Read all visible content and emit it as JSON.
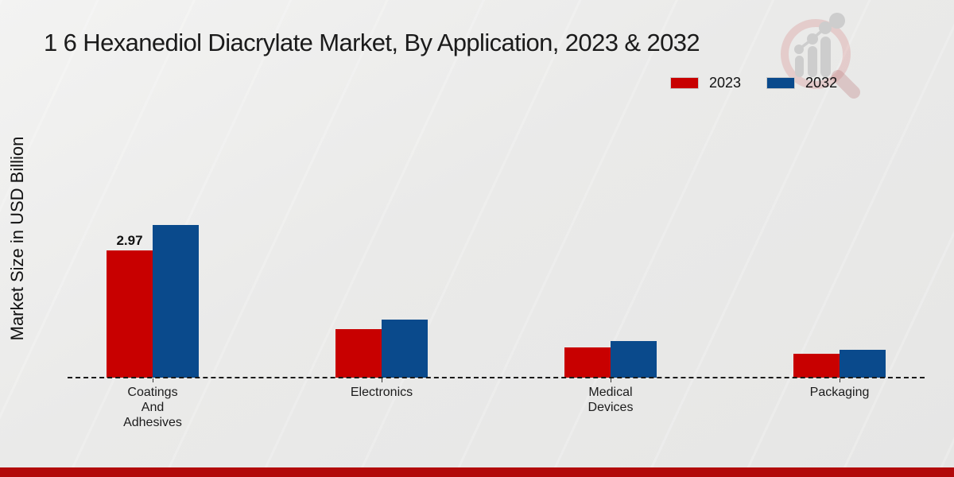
{
  "title": "1 6 Hexanediol Diacrylate Market, By Application, 2023 & 2032",
  "y_axis_label": "Market Size in USD Billion",
  "legend": [
    {
      "label": "2023",
      "color": "#c80000"
    },
    {
      "label": "2032",
      "color": "#0a4a8c"
    }
  ],
  "logo": {
    "name": "magnifier-bar-chart-watermark"
  },
  "colors": {
    "series_2023": "#c80000",
    "series_2032": "#0a4a8c",
    "footer_bar": "#b20a0a",
    "baseline": "#1a1a1a"
  },
  "chart_data": {
    "type": "bar",
    "title": "1 6 Hexanediol Diacrylate Market, By Application, 2023 & 2032",
    "xlabel": "",
    "ylabel": "Market Size in USD Billion",
    "categories": [
      "Coatings\nAnd\nAdhesives",
      "Electronics",
      "Medical\nDevices",
      "Packaging"
    ],
    "series": [
      {
        "name": "2023",
        "color": "#c80000",
        "values": [
          2.97,
          1.13,
          0.71,
          0.56
        ]
      },
      {
        "name": "2032",
        "color": "#0a4a8c",
        "values": [
          3.56,
          1.36,
          0.85,
          0.65
        ]
      }
    ],
    "value_annotations": [
      {
        "series": "2023",
        "category_index": 0,
        "text": "2.97"
      }
    ],
    "ylim": [
      0,
      4
    ],
    "grid": false,
    "baseline_style": "dashed",
    "legend_position": "top-right"
  }
}
